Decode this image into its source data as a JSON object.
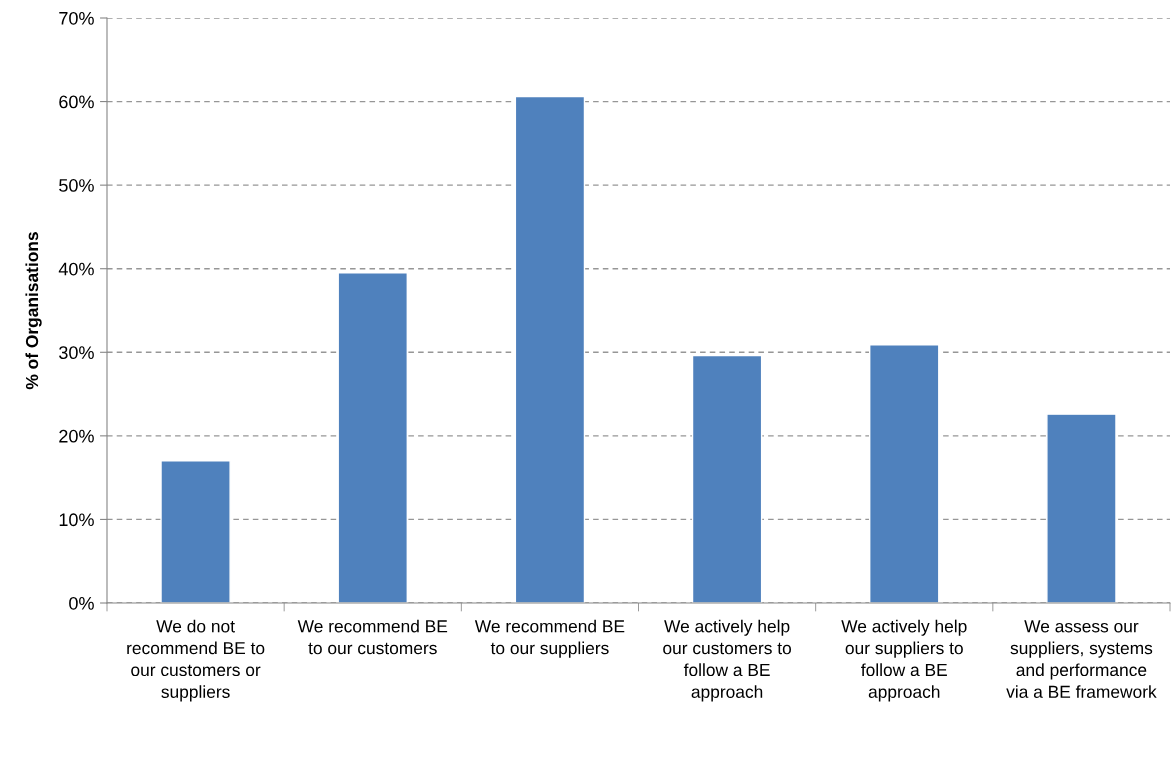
{
  "chart_data": {
    "type": "bar",
    "ylabel": "% of Organisations",
    "categories": [
      "We do not recommend BE to our customers or suppliers",
      "We recommend BE to our customers",
      "We recommend BE to our suppliers",
      "We actively help our customers to follow a BE approach",
      "We actively help our suppliers to follow a BE approach",
      "We assess our suppliers, systems and performance via a BE framework"
    ],
    "values": [
      17.0,
      39.5,
      60.6,
      29.6,
      30.9,
      22.6
    ],
    "color": "#4f81bd",
    "ylim": [
      0,
      70
    ],
    "yticks": [
      {
        "value": 0,
        "label": "0%"
      },
      {
        "value": 10,
        "label": "10%"
      },
      {
        "value": 20,
        "label": "20%"
      },
      {
        "value": 30,
        "label": "30%"
      },
      {
        "value": 40,
        "label": "40%"
      },
      {
        "value": 50,
        "label": "50%"
      },
      {
        "value": 60,
        "label": "60%"
      },
      {
        "value": 70,
        "label": "70%"
      }
    ],
    "grid": "y"
  }
}
